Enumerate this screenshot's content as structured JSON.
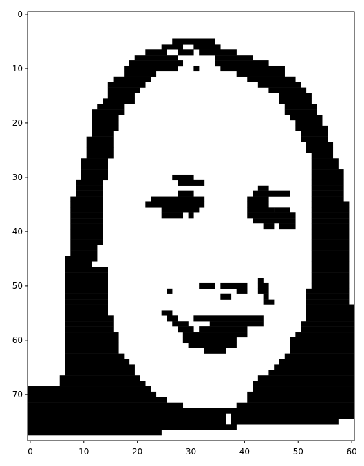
{
  "chart_data": {
    "type": "heatmap",
    "description_visible": false,
    "colormap": [
      "#ffffff",
      "#000000"
    ],
    "grid": false,
    "title": "",
    "xlabel": "",
    "ylabel": "",
    "xlim": [
      -0.5,
      60.5
    ],
    "ylim": [
      78.5,
      -0.5
    ],
    "x_ticks": [
      0,
      10,
      20,
      30,
      40,
      50,
      60
    ],
    "x_tick_labels": [
      "0",
      "10",
      "20",
      "30",
      "40",
      "50",
      "60"
    ],
    "y_ticks": [
      0,
      10,
      20,
      30,
      40,
      50,
      60,
      70
    ],
    "y_tick_labels": [
      "0",
      "10",
      "20",
      "30",
      "40",
      "50",
      "60",
      "70"
    ],
    "cols": 61,
    "rows": 79,
    "black_rects": [
      [
        27,
        5,
        34,
        5
      ],
      [
        25,
        6,
        28,
        6
      ],
      [
        31,
        6,
        35,
        6
      ],
      [
        22,
        7,
        25,
        7
      ],
      [
        28,
        7,
        30,
        7
      ],
      [
        32,
        7,
        38,
        7
      ],
      [
        20,
        8,
        27,
        8
      ],
      [
        35,
        8,
        41,
        8
      ],
      [
        19,
        9,
        28,
        9
      ],
      [
        35,
        9,
        44,
        9
      ],
      [
        18,
        10,
        27,
        10
      ],
      [
        31,
        10,
        31,
        10
      ],
      [
        36,
        10,
        47,
        10
      ],
      [
        18,
        11,
        23,
        11
      ],
      [
        39,
        11,
        47,
        11
      ],
      [
        16,
        12,
        22,
        12
      ],
      [
        41,
        12,
        49,
        12
      ],
      [
        15,
        13,
        21,
        13
      ],
      [
        43,
        13,
        50,
        13
      ],
      [
        15,
        14,
        20,
        14
      ],
      [
        45,
        14,
        51,
        14
      ],
      [
        15,
        15,
        19,
        15
      ],
      [
        47,
        15,
        52,
        15
      ],
      [
        14,
        16,
        19,
        16
      ],
      [
        47,
        16,
        52,
        16
      ],
      [
        13,
        17,
        17,
        17
      ],
      [
        48,
        17,
        53,
        17
      ],
      [
        12,
        18,
        17,
        18
      ],
      [
        48,
        18,
        53,
        18
      ],
      [
        12,
        19,
        16,
        19
      ],
      [
        49,
        19,
        54,
        19
      ],
      [
        12,
        20,
        16,
        20
      ],
      [
        50,
        20,
        54,
        20
      ],
      [
        12,
        21,
        16,
        21
      ],
      [
        50,
        21,
        55,
        21
      ],
      [
        12,
        22,
        15,
        22
      ],
      [
        51,
        22,
        55,
        22
      ],
      [
        11,
        23,
        15,
        23
      ],
      [
        51,
        23,
        55,
        23
      ],
      [
        11,
        24,
        15,
        24
      ],
      [
        52,
        24,
        56,
        24
      ],
      [
        11,
        25,
        15,
        25
      ],
      [
        52,
        25,
        56,
        25
      ],
      [
        11,
        26,
        15,
        26
      ],
      [
        53,
        26,
        56,
        26
      ],
      [
        10,
        27,
        14,
        27
      ],
      [
        53,
        27,
        57,
        27
      ],
      [
        10,
        28,
        14,
        28
      ],
      [
        53,
        28,
        57,
        28
      ],
      [
        10,
        29,
        14,
        29
      ],
      [
        53,
        29,
        58,
        29
      ],
      [
        10,
        30,
        14,
        30
      ],
      [
        27,
        30,
        30,
        30
      ],
      [
        53,
        30,
        58,
        30
      ],
      [
        9,
        31,
        13,
        31
      ],
      [
        28,
        31,
        32,
        31
      ],
      [
        53,
        31,
        58,
        31
      ],
      [
        9,
        32,
        13,
        32
      ],
      [
        43,
        32,
        44,
        32
      ],
      [
        53,
        32,
        58,
        32
      ],
      [
        9,
        33,
        13,
        33
      ],
      [
        28,
        33,
        30,
        33
      ],
      [
        42,
        33,
        48,
        33
      ],
      [
        53,
        33,
        58,
        33
      ],
      [
        8,
        34,
        13,
        34
      ],
      [
        23,
        34,
        32,
        34
      ],
      [
        41,
        34,
        44,
        34
      ],
      [
        53,
        34,
        58,
        34
      ],
      [
        8,
        35,
        13,
        35
      ],
      [
        22,
        35,
        28,
        35
      ],
      [
        29,
        35,
        32,
        35
      ],
      [
        41,
        35,
        44,
        35
      ],
      [
        53,
        35,
        59,
        35
      ],
      [
        8,
        36,
        13,
        36
      ],
      [
        25,
        36,
        31,
        36
      ],
      [
        41,
        36,
        45,
        36
      ],
      [
        46,
        36,
        48,
        36
      ],
      [
        53,
        36,
        59,
        36
      ],
      [
        8,
        37,
        13,
        37
      ],
      [
        25,
        37,
        28,
        37
      ],
      [
        30,
        37,
        30,
        37
      ],
      [
        41,
        37,
        49,
        37
      ],
      [
        53,
        37,
        59,
        37
      ],
      [
        8,
        38,
        13,
        38
      ],
      [
        42,
        38,
        44,
        38
      ],
      [
        45,
        38,
        49,
        38
      ],
      [
        53,
        38,
        59,
        38
      ],
      [
        8,
        39,
        13,
        39
      ],
      [
        44,
        39,
        45,
        39
      ],
      [
        47,
        39,
        49,
        39
      ],
      [
        53,
        39,
        59,
        39
      ],
      [
        8,
        40,
        13,
        40
      ],
      [
        53,
        40,
        59,
        40
      ],
      [
        8,
        41,
        13,
        41
      ],
      [
        53,
        41,
        59,
        41
      ],
      [
        8,
        42,
        13,
        42
      ],
      [
        53,
        42,
        59,
        42
      ],
      [
        8,
        43,
        12,
        43
      ],
      [
        53,
        43,
        59,
        43
      ],
      [
        8,
        44,
        12,
        44
      ],
      [
        53,
        44,
        59,
        44
      ],
      [
        7,
        45,
        12,
        45
      ],
      [
        53,
        45,
        59,
        45
      ],
      [
        7,
        46,
        11,
        46
      ],
      [
        53,
        46,
        59,
        46
      ],
      [
        7,
        47,
        14,
        47
      ],
      [
        53,
        47,
        59,
        47
      ],
      [
        7,
        48,
        14,
        48
      ],
      [
        53,
        48,
        59,
        48
      ],
      [
        7,
        49,
        14,
        49
      ],
      [
        43,
        49,
        43,
        49
      ],
      [
        53,
        49,
        59,
        49
      ],
      [
        7,
        50,
        14,
        50
      ],
      [
        32,
        50,
        34,
        50
      ],
      [
        36,
        50,
        40,
        50
      ],
      [
        43,
        50,
        44,
        50
      ],
      [
        53,
        50,
        59,
        50
      ],
      [
        7,
        51,
        14,
        51
      ],
      [
        26,
        51,
        26,
        51
      ],
      [
        39,
        51,
        40,
        51
      ],
      [
        43,
        51,
        44,
        51
      ],
      [
        52,
        51,
        59,
        51
      ],
      [
        7,
        52,
        14,
        52
      ],
      [
        36,
        52,
        37,
        52
      ],
      [
        44,
        52,
        44,
        52
      ],
      [
        52,
        52,
        59,
        52
      ],
      [
        7,
        53,
        14,
        53
      ],
      [
        44,
        53,
        45,
        53
      ],
      [
        52,
        53,
        59,
        53
      ],
      [
        7,
        54,
        14,
        54
      ],
      [
        52,
        54,
        60,
        54
      ],
      [
        7,
        55,
        14,
        55
      ],
      [
        25,
        55,
        26,
        55
      ],
      [
        52,
        55,
        60,
        55
      ],
      [
        7,
        56,
        15,
        56
      ],
      [
        26,
        56,
        27,
        56
      ],
      [
        31,
        56,
        36,
        56
      ],
      [
        37,
        56,
        41,
        56
      ],
      [
        42,
        56,
        43,
        56
      ],
      [
        52,
        56,
        60,
        56
      ],
      [
        7,
        57,
        15,
        57
      ],
      [
        27,
        57,
        29,
        57
      ],
      [
        34,
        57,
        39,
        57
      ],
      [
        40,
        57,
        43,
        57
      ],
      [
        51,
        57,
        60,
        57
      ],
      [
        7,
        58,
        15,
        58
      ],
      [
        28,
        58,
        30,
        58
      ],
      [
        32,
        58,
        40,
        58
      ],
      [
        51,
        58,
        60,
        58
      ],
      [
        7,
        59,
        16,
        59
      ],
      [
        29,
        59,
        40,
        59
      ],
      [
        50,
        59,
        60,
        59
      ],
      [
        7,
        60,
        16,
        60
      ],
      [
        29,
        60,
        38,
        60
      ],
      [
        49,
        60,
        60,
        60
      ],
      [
        7,
        61,
        16,
        61
      ],
      [
        30,
        61,
        38,
        61
      ],
      [
        49,
        61,
        60,
        61
      ],
      [
        7,
        62,
        16,
        62
      ],
      [
        33,
        62,
        36,
        62
      ],
      [
        49,
        62,
        60,
        62
      ],
      [
        7,
        63,
        17,
        63
      ],
      [
        48,
        63,
        60,
        63
      ],
      [
        7,
        64,
        18,
        64
      ],
      [
        47,
        64,
        60,
        64
      ],
      [
        7,
        65,
        19,
        65
      ],
      [
        46,
        65,
        60,
        65
      ],
      [
        7,
        66,
        19,
        66
      ],
      [
        45,
        66,
        60,
        66
      ],
      [
        6,
        67,
        20,
        67
      ],
      [
        43,
        67,
        60,
        67
      ],
      [
        6,
        68,
        21,
        68
      ],
      [
        42,
        68,
        60,
        68
      ],
      [
        0,
        69,
        22,
        69
      ],
      [
        42,
        69,
        60,
        69
      ],
      [
        0,
        70,
        23,
        70
      ],
      [
        41,
        70,
        60,
        70
      ],
      [
        0,
        71,
        25,
        71
      ],
      [
        41,
        71,
        60,
        71
      ],
      [
        0,
        72,
        28,
        72
      ],
      [
        39,
        72,
        60,
        72
      ],
      [
        0,
        73,
        35,
        73
      ],
      [
        36,
        73,
        37,
        73
      ],
      [
        38,
        73,
        60,
        73
      ],
      [
        0,
        74,
        36,
        74
      ],
      [
        38,
        74,
        60,
        74
      ],
      [
        0,
        75,
        36,
        75
      ],
      [
        38,
        75,
        57,
        75
      ],
      [
        0,
        76,
        35,
        76
      ],
      [
        36,
        76,
        38,
        76
      ],
      [
        0,
        77,
        24,
        77
      ]
    ]
  }
}
